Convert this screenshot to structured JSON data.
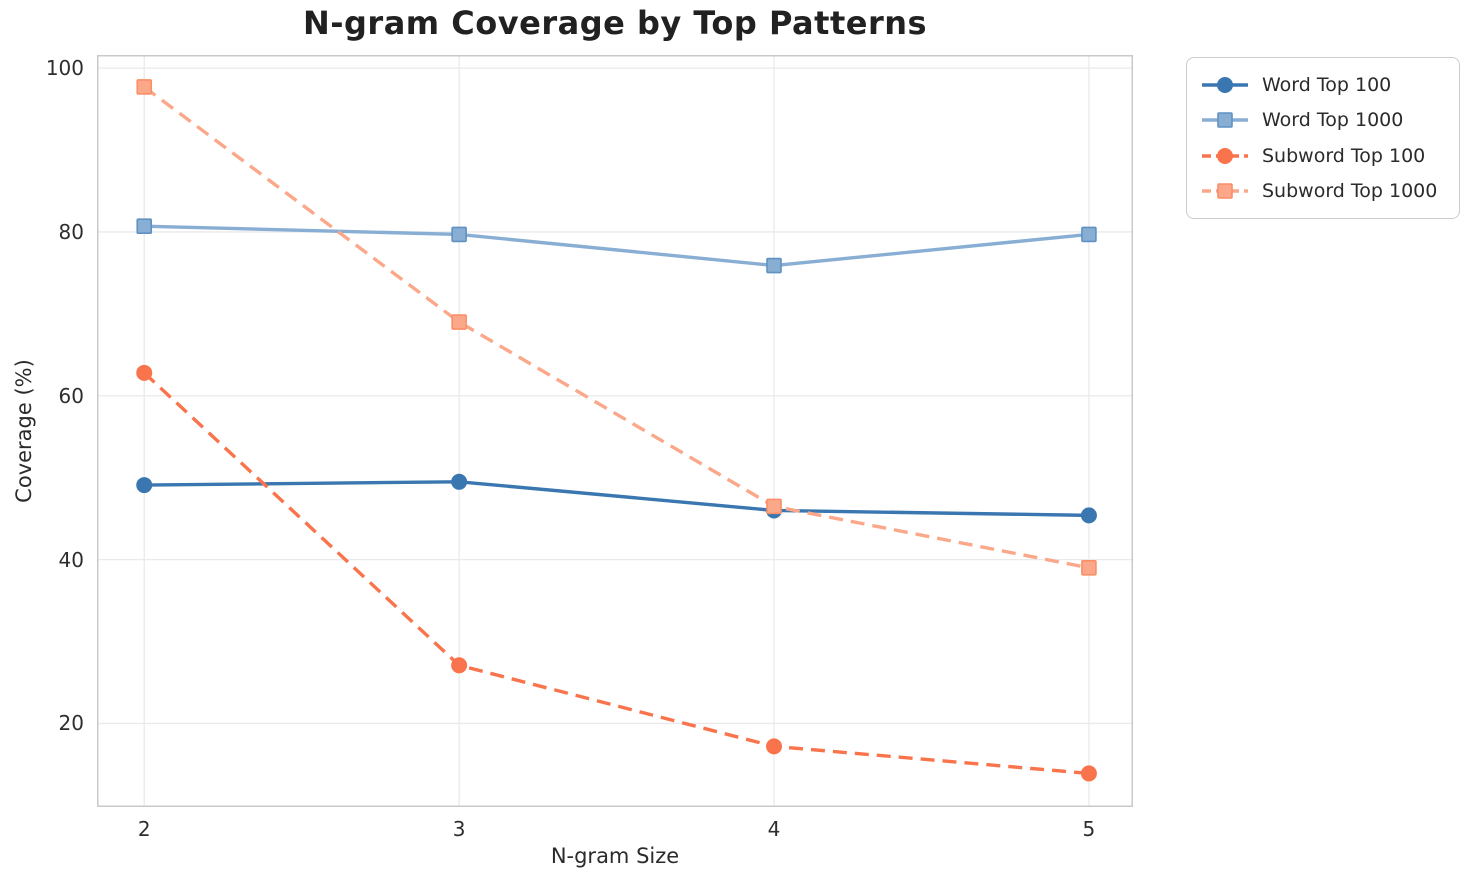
{
  "chart_data": {
    "type": "line",
    "title": "N-gram Coverage by Top Patterns",
    "xlabel": "N-gram Size",
    "ylabel": "Coverage (%)",
    "x": [
      2,
      3,
      4,
      5
    ],
    "xticks": [
      "2",
      "3",
      "4",
      "5"
    ],
    "yticks": [
      "20",
      "40",
      "60",
      "80",
      "100"
    ],
    "xlim": [
      1.85,
      5.14
    ],
    "ylim": [
      9.8,
      101.6
    ],
    "grid": true,
    "legend": {
      "position": "outside-upper-right",
      "entries": [
        "Word Top 100",
        "Word Top 1000",
        "Subword Top 100",
        "Subword Top 1000"
      ]
    },
    "series": [
      {
        "name": "Word Top 100",
        "values": [
          49.1,
          49.5,
          46.0,
          45.4
        ],
        "color": "#3A77B0",
        "line_style": "solid",
        "marker": "circle",
        "marker_edge": "#3A77B0"
      },
      {
        "name": "Word Top 1000",
        "values": [
          80.7,
          79.7,
          75.9,
          79.7
        ],
        "color": "#89AED3",
        "line_style": "solid",
        "marker": "square",
        "marker_edge": "#5E92C2"
      },
      {
        "name": "Subword Top 100",
        "values": [
          62.8,
          27.1,
          17.2,
          13.9
        ],
        "color": "#F9744C",
        "line_style": "dashed",
        "marker": "circle",
        "marker_edge": "#F9744C"
      },
      {
        "name": "Subword Top 1000",
        "values": [
          97.7,
          69.0,
          46.5,
          39.0
        ],
        "color": "#FBA88A",
        "line_style": "dashed",
        "marker": "square",
        "marker_edge": "#FA8E67"
      }
    ],
    "colors": {
      "grid": "#EAEAEA",
      "spine": "#C9C9C9",
      "tick_text": "#2E2E2E",
      "title_text": "#212121",
      "background": "#FFFFFF"
    }
  }
}
